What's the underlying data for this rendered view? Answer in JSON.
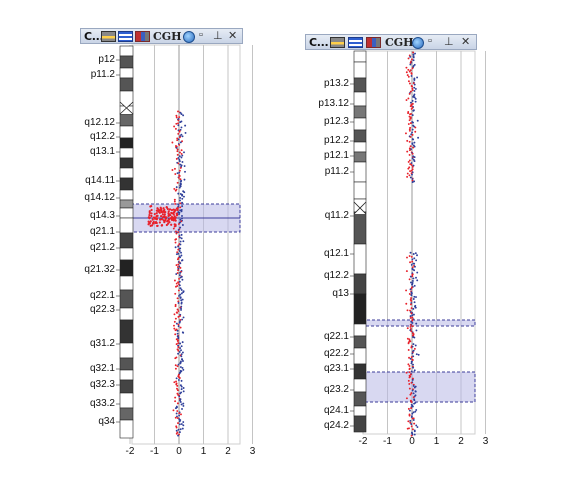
{
  "panels": [
    {
      "title": "C...",
      "toolbar_text": "CGH",
      "x_ticks": [
        "-2",
        "-1",
        "0",
        "1",
        "2",
        "3"
      ],
      "band_labels": [
        "p12",
        "p11.2",
        "q12.12",
        "q12.2",
        "q13.1",
        "q14.11",
        "q14.12",
        "q14.3",
        "q21.1",
        "q21.2",
        "q21.32",
        "q22.1",
        "q22.3",
        "q31.2",
        "q32.1",
        "q32.3",
        "q33.2",
        "q34"
      ]
    },
    {
      "title": "C...",
      "toolbar_text": "CGH",
      "x_ticks": [
        "-2",
        "-1",
        "0",
        "1",
        "2",
        "3"
      ],
      "band_labels": [
        "p13.2",
        "p13.12",
        "p12.3",
        "p12.2",
        "p12.1",
        "p11.2",
        "q11.2",
        "q12.1",
        "q12.2",
        "q13",
        "q22.1",
        "q22.2",
        "q23.1",
        "q23.2",
        "q24.1",
        "q24.2"
      ]
    }
  ],
  "colors": {
    "red_probe": "#e8202a",
    "blue_probe": "#2f3f9a",
    "highlight": "#b8b8e6",
    "highlight_border": "#3b3b9a"
  },
  "chart_data": [
    {
      "type": "scatter",
      "x_ticks": [
        -2,
        -1,
        0,
        1,
        2,
        3
      ],
      "xlim": [
        -2.5,
        3.2
      ],
      "grid": "vertical",
      "highlighted_bands": [
        "q14.3"
      ],
      "series": [
        {
          "color": "red_probe",
          "region": "q14.3",
          "x_range": [
            -1.3,
            -0.1
          ]
        }
      ]
    },
    {
      "type": "scatter",
      "x_ticks": [
        -2,
        -1,
        0,
        1,
        2,
        3
      ],
      "xlim": [
        -2.5,
        3.2
      ],
      "grid": "vertical",
      "highlighted_bands": [
        "q13",
        "q23.2"
      ]
    }
  ]
}
